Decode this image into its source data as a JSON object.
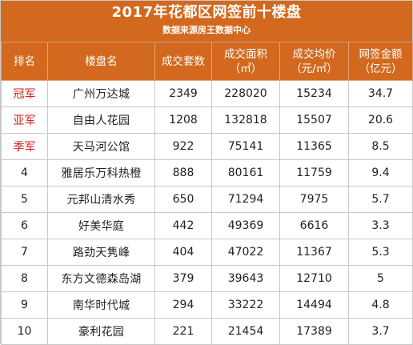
{
  "header": {
    "title": "2017年花都区网签前十楼盘",
    "subtitle": "数据来源房王数据中心"
  },
  "columns": [
    {
      "line1": "排名",
      "line2": ""
    },
    {
      "line1": "楼盘名",
      "line2": ""
    },
    {
      "line1": "成交套数",
      "line2": ""
    },
    {
      "line1": "成交面积",
      "line2": "（㎡）"
    },
    {
      "line1": "成交均价",
      "line2": "（元/㎡）"
    },
    {
      "line1": "网签金额",
      "line2": "（亿元）"
    }
  ],
  "rows": [
    {
      "rank": "冠军",
      "name": "广州万达城",
      "units": "2349",
      "area": "228020",
      "avg_price": "15234",
      "amount": "34.7"
    },
    {
      "rank": "亚军",
      "name": "自由人花园",
      "units": "1208",
      "area": "132818",
      "avg_price": "15507",
      "amount": "20.6"
    },
    {
      "rank": "季军",
      "name": "天马河公馆",
      "units": "922",
      "area": "75141",
      "avg_price": "11365",
      "amount": "8.5"
    },
    {
      "rank": "4",
      "name": "雅居乐万科热橙",
      "units": "888",
      "area": "80161",
      "avg_price": "11759",
      "amount": "9.4"
    },
    {
      "rank": "5",
      "name": "元邦山清水秀",
      "units": "650",
      "area": "71294",
      "avg_price": "7975",
      "amount": "5.7"
    },
    {
      "rank": "6",
      "name": "好美华庭",
      "units": "442",
      "area": "49369",
      "avg_price": "6616",
      "amount": "3.3"
    },
    {
      "rank": "7",
      "name": "路劲天隽峰",
      "units": "404",
      "area": "47022",
      "avg_price": "11367",
      "amount": "5.3"
    },
    {
      "rank": "8",
      "name": "东方文德森岛湖",
      "units": "379",
      "area": "39643",
      "avg_price": "12710",
      "amount": "5"
    },
    {
      "rank": "9",
      "name": "南华时代城",
      "units": "294",
      "area": "33222",
      "avg_price": "14494",
      "amount": "4.8"
    },
    {
      "rank": "10",
      "name": "豪利花园",
      "units": "221",
      "area": "21454",
      "avg_price": "17389",
      "amount": "3.7"
    }
  ],
  "colors": {
    "header_bg": "#d2691e",
    "medal_text": "#d0201a"
  }
}
